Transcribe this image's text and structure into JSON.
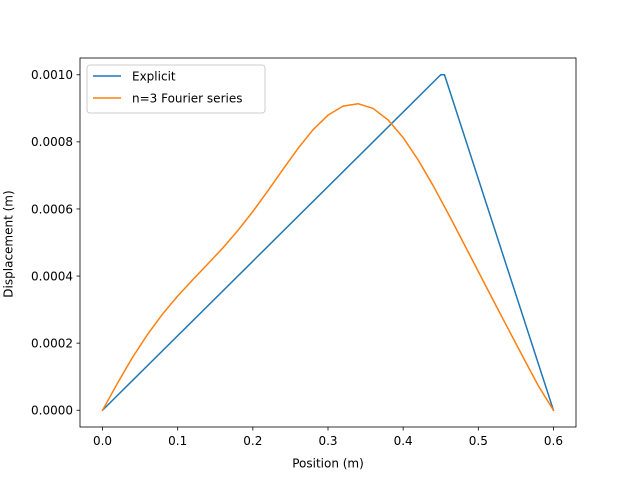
{
  "chart_data": {
    "type": "line",
    "title": "",
    "xlabel": "Position (m)",
    "ylabel": "Displacement (m)",
    "xlim": [
      -0.03,
      0.63
    ],
    "ylim": [
      -5e-05,
      0.00105
    ],
    "x_ticks": [
      0.0,
      0.1,
      0.2,
      0.3,
      0.4,
      0.5,
      0.6
    ],
    "x_tick_labels": [
      "0.0",
      "0.1",
      "0.2",
      "0.3",
      "0.4",
      "0.5",
      "0.6"
    ],
    "y_ticks": [
      0.0,
      0.0002,
      0.0004,
      0.0006,
      0.0008,
      0.001
    ],
    "y_tick_labels": [
      "0.0000",
      "0.0002",
      "0.0004",
      "0.0006",
      "0.0008",
      "0.0010"
    ],
    "grid": false,
    "legend_position": "top-left",
    "series": [
      {
        "name": "Explicit",
        "color": "#1f77b4",
        "x": [
          0.0,
          0.45,
          0.455,
          0.6
        ],
        "y": [
          0.0,
          0.001,
          0.001,
          0.0
        ]
      },
      {
        "name": "n=3 Fourier series",
        "color": "#ff7f0e",
        "x": [
          0.0,
          0.02,
          0.04,
          0.06,
          0.08,
          0.1,
          0.12,
          0.14,
          0.16,
          0.18,
          0.2,
          0.22,
          0.24,
          0.26,
          0.28,
          0.3,
          0.32,
          0.34,
          0.36,
          0.38,
          0.4,
          0.42,
          0.44,
          0.46,
          0.48,
          0.5,
          0.52,
          0.54,
          0.56,
          0.58,
          0.6
        ],
        "y": [
          0.0,
          8.1e-05,
          0.0001579,
          0.0002264,
          0.000287,
          0.0003405,
          0.000389,
          0.0004359,
          0.0004837,
          0.0005356,
          0.0005924,
          0.0006541,
          0.0007179,
          0.0007802,
          0.0008359,
          0.0008796,
          0.0009066,
          0.0009137,
          0.0008996,
          0.0008651,
          0.0008127,
          0.0007459,
          0.000669,
          0.000586,
          0.0005001,
          0.0004135,
          0.0003272,
          0.0002415,
          0.0001565,
          7.24e-05,
          0.0
        ]
      }
    ]
  }
}
